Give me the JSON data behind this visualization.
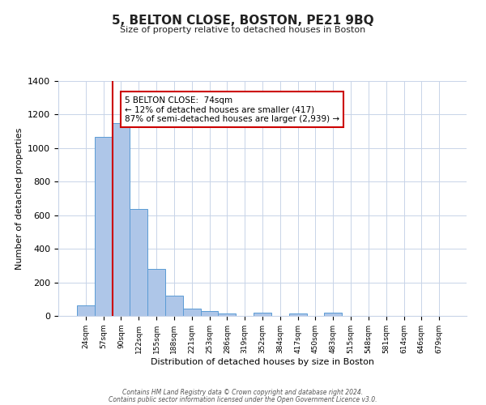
{
  "title": "5, BELTON CLOSE, BOSTON, PE21 9BQ",
  "subtitle": "Size of property relative to detached houses in Boston",
  "xlabel": "Distribution of detached houses by size in Boston",
  "ylabel": "Number of detached properties",
  "bar_labels": [
    "24sqm",
    "57sqm",
    "90sqm",
    "122sqm",
    "155sqm",
    "188sqm",
    "221sqm",
    "253sqm",
    "286sqm",
    "319sqm",
    "352sqm",
    "384sqm",
    "417sqm",
    "450sqm",
    "483sqm",
    "515sqm",
    "548sqm",
    "581sqm",
    "614sqm",
    "646sqm",
    "679sqm"
  ],
  "bar_values": [
    65,
    1065,
    1150,
    635,
    280,
    120,
    45,
    30,
    15,
    0,
    20,
    0,
    15,
    0,
    20,
    0,
    0,
    0,
    0,
    0,
    0
  ],
  "bar_color": "#aec6e8",
  "bar_edge_color": "#5b9bd5",
  "vline_color": "#cc0000",
  "ylim": [
    0,
    1400
  ],
  "yticks": [
    0,
    200,
    400,
    600,
    800,
    1000,
    1200,
    1400
  ],
  "annotation_text": "5 BELTON CLOSE:  74sqm\n← 12% of detached houses are smaller (417)\n87% of semi-detached houses are larger (2,939) →",
  "annotation_box_color": "#ffffff",
  "annotation_box_edge": "#cc0000",
  "footer_line1": "Contains HM Land Registry data © Crown copyright and database right 2024.",
  "footer_line2": "Contains public sector information licensed under the Open Government Licence v3.0.",
  "plot_background": "#ffffff",
  "grid_color": "#c8d4e8"
}
